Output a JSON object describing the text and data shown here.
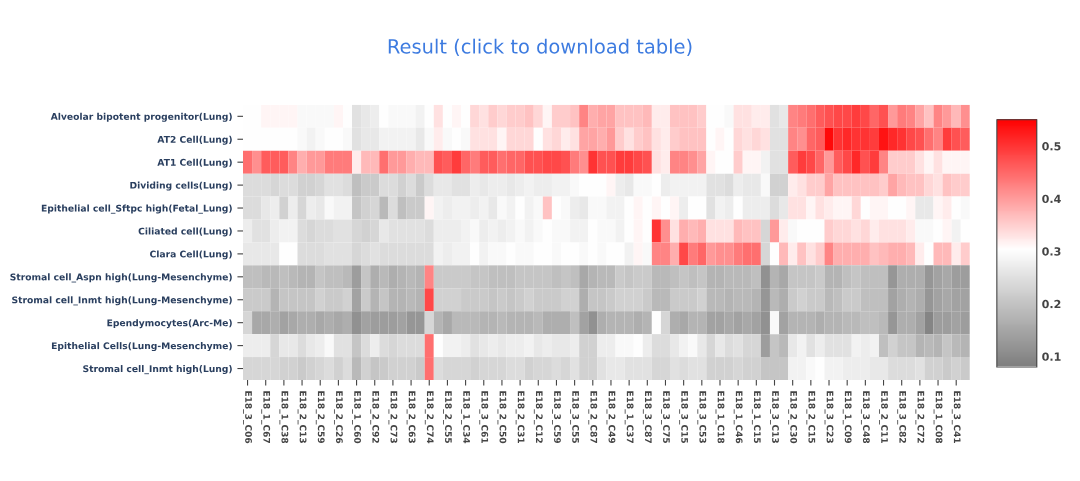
{
  "chart_data": {
    "type": "heatmap",
    "title": "Result (click to download table)",
    "categories": [
      "E18_3_C06",
      null,
      "E18_1_C67",
      null,
      "E18_1_C38",
      null,
      "E18_2_C13",
      null,
      "E18_2_C59",
      null,
      "E18_2_C26",
      null,
      "E18_1_C60",
      null,
      "E18_2_C92",
      null,
      "E18_2_C73",
      null,
      "E18_2_C63",
      null,
      "E18_2_C74",
      null,
      "E18_2_C55",
      null,
      "E18_1_C34",
      null,
      "E18_3_C61",
      null,
      "E18_2_C50",
      null,
      "E18_2_C31",
      null,
      "E18_2_C12",
      null,
      "E18_3_C59",
      null,
      "E18_3_C55",
      null,
      "E18_2_C87",
      null,
      "E18_2_C49",
      null,
      "E18_1_C37",
      null,
      "E18_3_C87",
      null,
      "E18_3_C75",
      null,
      "E18_3_C15",
      null,
      "E18_3_C53",
      null,
      "E18_1_C18",
      null,
      "E18_1_C46",
      null,
      "E18_1_C15",
      null,
      "E18_3_C13",
      null,
      "E18_2_C30",
      null,
      "E18_2_C15",
      null,
      "E18_3_C23",
      null,
      "E18_1_C09",
      null,
      "E18_3_C48",
      null,
      "E18_2_C11",
      null,
      "E18_3_C82",
      null,
      "E18_2_C72",
      null,
      "E18_1_C08",
      null,
      "E18_3_C41",
      null
    ],
    "y_categories": [
      "Alveolar bipotent progenitor(Lung)",
      "AT2 Cell(Lung)",
      "AT1 Cell(Lung)",
      "Dividing cells(Lung)",
      "Epithelial cell_Sftpc high(Fetal_Lung)",
      "Ciliated cell(Lung)",
      "Clara Cell(Lung)",
      "Stromal cell_Aspn high(Lung-Mesenchyme)",
      "Stromal cell_Inmt high(Lung-Mesenchyme)",
      "Ependymocytes(Arc-Me)",
      "Epithelial Cells(Lung-Mesenchyme)",
      "Stromal cell_Inmt high(Lung)"
    ],
    "cells": [
      [
        0.3,
        0.3,
        0.31,
        0.31,
        0.31,
        0.31,
        0.29,
        0.29,
        0.29,
        0.29,
        0.31,
        0.3,
        0.25,
        0.26,
        0.27,
        0.3,
        0.29,
        0.29,
        0.29,
        0.28,
        0.3,
        0.33,
        0.3,
        0.31,
        0.3,
        0.34,
        0.33,
        0.35,
        0.34,
        0.35,
        0.35,
        0.36,
        0.34,
        0.31,
        0.35,
        0.35,
        0.36,
        0.42,
        0.38,
        0.39,
        0.39,
        0.36,
        0.36,
        0.36,
        0.37,
        0.32,
        0.32,
        0.36,
        0.36,
        0.36,
        0.35,
        0.3,
        0.3,
        0.29,
        0.33,
        0.33,
        0.32,
        0.32,
        0.25,
        0.26,
        0.42,
        0.43,
        0.44,
        0.46,
        0.47,
        0.48,
        0.48,
        0.49,
        0.48,
        0.45,
        0.47,
        0.4,
        0.43,
        0.42,
        0.39,
        0.36,
        0.42,
        0.4,
        0.37,
        0.41
      ],
      [
        0.3,
        0.3,
        0.3,
        0.3,
        0.3,
        0.3,
        0.29,
        0.28,
        0.29,
        0.3,
        0.3,
        0.29,
        0.25,
        0.26,
        0.26,
        0.28,
        0.28,
        0.28,
        0.28,
        0.26,
        0.29,
        0.32,
        0.29,
        0.3,
        0.29,
        0.33,
        0.33,
        0.33,
        0.31,
        0.34,
        0.34,
        0.34,
        0.3,
        0.33,
        0.34,
        0.32,
        0.33,
        0.39,
        0.39,
        0.38,
        0.4,
        0.35,
        0.33,
        0.35,
        0.36,
        0.33,
        0.32,
        0.35,
        0.36,
        0.36,
        0.36,
        0.3,
        0.31,
        0.3,
        0.34,
        0.33,
        0.34,
        0.33,
        0.25,
        0.25,
        0.42,
        0.41,
        0.45,
        0.46,
        0.54,
        0.5,
        0.51,
        0.5,
        0.5,
        0.49,
        0.53,
        0.51,
        0.5,
        0.48,
        0.47,
        0.44,
        0.42,
        0.49,
        0.47,
        0.46
      ],
      [
        0.44,
        0.41,
        0.46,
        0.46,
        0.46,
        0.42,
        0.38,
        0.4,
        0.4,
        0.43,
        0.43,
        0.43,
        0.32,
        0.37,
        0.37,
        0.44,
        0.4,
        0.4,
        0.38,
        0.37,
        0.37,
        0.47,
        0.46,
        0.49,
        0.45,
        0.43,
        0.46,
        0.46,
        0.44,
        0.45,
        0.45,
        0.47,
        0.47,
        0.48,
        0.48,
        0.47,
        0.43,
        0.41,
        0.5,
        0.47,
        0.47,
        0.49,
        0.49,
        0.48,
        0.47,
        0.33,
        0.32,
        0.42,
        0.42,
        0.41,
        0.39,
        0.31,
        0.3,
        0.3,
        0.35,
        0.31,
        0.31,
        0.28,
        0.25,
        0.25,
        0.46,
        0.49,
        0.48,
        0.45,
        0.4,
        0.46,
        0.48,
        0.51,
        0.47,
        0.49,
        0.42,
        0.35,
        0.35,
        0.35,
        0.33,
        0.31,
        0.33,
        0.31,
        0.31,
        0.31
      ],
      [
        0.24,
        0.24,
        0.24,
        0.23,
        0.24,
        0.24,
        0.22,
        0.22,
        0.23,
        0.25,
        0.25,
        0.24,
        0.19,
        0.21,
        0.21,
        0.24,
        0.24,
        0.22,
        0.24,
        0.21,
        0.24,
        0.26,
        0.26,
        0.25,
        0.25,
        0.27,
        0.26,
        0.27,
        0.27,
        0.26,
        0.27,
        0.28,
        0.27,
        0.27,
        0.28,
        0.28,
        0.29,
        0.3,
        0.3,
        0.3,
        0.31,
        0.27,
        0.26,
        0.29,
        0.29,
        0.3,
        0.27,
        0.28,
        0.28,
        0.28,
        0.28,
        0.25,
        0.25,
        0.24,
        0.27,
        0.26,
        0.26,
        0.29,
        0.22,
        0.22,
        0.32,
        0.33,
        0.35,
        0.35,
        0.39,
        0.36,
        0.36,
        0.36,
        0.36,
        0.36,
        0.35,
        0.39,
        0.37,
        0.36,
        0.36,
        0.34,
        0.33,
        0.36,
        0.35,
        0.35
      ],
      [
        0.24,
        0.24,
        0.26,
        0.27,
        0.22,
        0.27,
        0.23,
        0.27,
        0.26,
        0.29,
        0.28,
        0.28,
        0.2,
        0.22,
        0.23,
        0.18,
        0.24,
        0.19,
        0.21,
        0.21,
        0.31,
        0.28,
        0.27,
        0.28,
        0.28,
        0.27,
        0.28,
        0.26,
        0.29,
        0.28,
        0.3,
        0.28,
        0.29,
        0.36,
        0.3,
        0.29,
        0.27,
        0.26,
        0.29,
        0.29,
        0.28,
        0.28,
        0.3,
        0.31,
        0.3,
        0.31,
        0.3,
        0.31,
        0.27,
        0.3,
        0.3,
        0.25,
        0.28,
        0.27,
        0.3,
        0.27,
        0.27,
        0.27,
        0.24,
        0.26,
        0.33,
        0.33,
        0.31,
        0.33,
        0.32,
        0.31,
        0.31,
        0.34,
        0.3,
        0.31,
        0.31,
        0.3,
        0.3,
        0.31,
        0.26,
        0.26,
        0.31,
        0.32,
        0.3,
        0.29
      ],
      [
        0.27,
        0.25,
        0.25,
        0.27,
        0.28,
        0.28,
        0.24,
        0.23,
        0.24,
        0.24,
        0.25,
        0.25,
        0.23,
        0.22,
        0.23,
        0.26,
        0.25,
        0.25,
        0.25,
        0.25,
        0.24,
        0.27,
        0.27,
        0.27,
        0.28,
        0.29,
        0.27,
        0.28,
        0.27,
        0.28,
        0.29,
        0.28,
        0.29,
        0.3,
        0.29,
        0.29,
        0.28,
        0.28,
        0.3,
        0.29,
        0.29,
        0.28,
        0.3,
        0.31,
        0.3,
        0.5,
        0.41,
        0.33,
        0.38,
        0.37,
        0.38,
        0.33,
        0.33,
        0.33,
        0.37,
        0.36,
        0.36,
        0.23,
        0.4,
        0.32,
        0.29,
        0.3,
        0.3,
        0.3,
        0.35,
        0.34,
        0.34,
        0.33,
        0.34,
        0.32,
        0.33,
        0.33,
        0.33,
        0.32,
        0.29,
        0.29,
        0.3,
        0.31,
        0.28,
        0.3
      ],
      [
        0.26,
        0.26,
        0.26,
        0.26,
        0.3,
        0.3,
        0.24,
        0.24,
        0.24,
        0.25,
        0.25,
        0.25,
        0.23,
        0.24,
        0.25,
        0.24,
        0.24,
        0.24,
        0.24,
        0.24,
        0.24,
        0.28,
        0.27,
        0.28,
        0.28,
        0.3,
        0.28,
        0.29,
        0.29,
        0.3,
        0.29,
        0.29,
        0.3,
        0.3,
        0.29,
        0.3,
        0.3,
        0.29,
        0.3,
        0.29,
        0.3,
        0.3,
        0.28,
        0.31,
        0.29,
        0.42,
        0.42,
        0.38,
        0.48,
        0.43,
        0.45,
        0.4,
        0.41,
        0.41,
        0.43,
        0.44,
        0.44,
        0.23,
        0.3,
        0.37,
        0.32,
        0.36,
        0.33,
        0.35,
        0.42,
        0.38,
        0.38,
        0.38,
        0.38,
        0.36,
        0.37,
        0.38,
        0.38,
        0.37,
        0.32,
        0.3,
        0.37,
        0.37,
        0.32,
        0.35
      ],
      [
        0.19,
        0.19,
        0.18,
        0.18,
        0.19,
        0.18,
        0.17,
        0.17,
        0.2,
        0.19,
        0.19,
        0.18,
        0.13,
        0.2,
        0.16,
        0.18,
        0.16,
        0.17,
        0.18,
        0.17,
        0.42,
        0.21,
        0.21,
        0.21,
        0.21,
        0.2,
        0.2,
        0.19,
        0.19,
        0.19,
        0.2,
        0.2,
        0.2,
        0.2,
        0.19,
        0.2,
        0.19,
        0.15,
        0.17,
        0.18,
        0.18,
        0.21,
        0.2,
        0.21,
        0.21,
        0.18,
        0.18,
        0.19,
        0.2,
        0.19,
        0.2,
        0.17,
        0.17,
        0.18,
        0.18,
        0.18,
        0.19,
        0.11,
        0.17,
        0.15,
        0.2,
        0.2,
        0.2,
        0.21,
        0.17,
        0.17,
        0.19,
        0.2,
        0.19,
        0.19,
        0.19,
        0.12,
        0.16,
        0.16,
        0.16,
        0.12,
        0.14,
        0.15,
        0.13,
        0.13
      ],
      [
        0.21,
        0.21,
        0.21,
        0.17,
        0.2,
        0.2,
        0.2,
        0.2,
        0.22,
        0.21,
        0.21,
        0.22,
        0.14,
        0.21,
        0.17,
        0.2,
        0.17,
        0.17,
        0.18,
        0.17,
        0.48,
        0.22,
        0.22,
        0.22,
        0.21,
        0.21,
        0.21,
        0.2,
        0.21,
        0.2,
        0.21,
        0.22,
        0.21,
        0.21,
        0.21,
        0.22,
        0.22,
        0.16,
        0.2,
        0.2,
        0.21,
        0.22,
        0.22,
        0.22,
        0.21,
        0.18,
        0.18,
        0.21,
        0.21,
        0.21,
        0.22,
        0.18,
        0.18,
        0.17,
        0.18,
        0.18,
        0.17,
        0.12,
        0.18,
        0.16,
        0.21,
        0.22,
        0.21,
        0.21,
        0.18,
        0.19,
        0.21,
        0.21,
        0.19,
        0.19,
        0.19,
        0.14,
        0.16,
        0.17,
        0.16,
        0.12,
        0.14,
        0.15,
        0.14,
        0.14
      ],
      [
        0.23,
        0.15,
        0.15,
        0.16,
        0.14,
        0.15,
        0.16,
        0.16,
        0.15,
        0.16,
        0.15,
        0.16,
        0.11,
        0.14,
        0.13,
        0.13,
        0.13,
        0.14,
        0.12,
        0.12,
        0.23,
        0.17,
        0.15,
        0.18,
        0.18,
        0.18,
        0.17,
        0.17,
        0.18,
        0.17,
        0.17,
        0.17,
        0.18,
        0.16,
        0.16,
        0.16,
        0.19,
        0.14,
        0.11,
        0.16,
        0.17,
        0.17,
        0.17,
        0.16,
        0.17,
        0.3,
        0.23,
        0.16,
        0.15,
        0.17,
        0.17,
        0.14,
        0.14,
        0.15,
        0.14,
        0.15,
        0.14,
        0.11,
        0.29,
        0.14,
        0.17,
        0.17,
        0.17,
        0.16,
        0.17,
        0.17,
        0.18,
        0.18,
        0.19,
        0.19,
        0.18,
        0.12,
        0.16,
        0.16,
        0.14,
        0.09,
        0.13,
        0.13,
        0.14,
        0.13
      ],
      [
        0.27,
        0.27,
        0.27,
        0.23,
        0.26,
        0.26,
        0.24,
        0.26,
        0.27,
        0.29,
        0.25,
        0.25,
        0.2,
        0.24,
        0.27,
        0.24,
        0.23,
        0.24,
        0.24,
        0.24,
        0.44,
        0.3,
        0.28,
        0.28,
        0.27,
        0.25,
        0.26,
        0.27,
        0.26,
        0.27,
        0.27,
        0.28,
        0.26,
        0.27,
        0.26,
        0.26,
        0.27,
        0.22,
        0.22,
        0.27,
        0.27,
        0.29,
        0.29,
        0.3,
        0.27,
        0.24,
        0.24,
        0.26,
        0.28,
        0.29,
        0.26,
        0.23,
        0.26,
        0.24,
        0.25,
        0.23,
        0.23,
        0.13,
        0.2,
        0.18,
        0.26,
        0.28,
        0.25,
        0.27,
        0.25,
        0.25,
        0.25,
        0.28,
        0.27,
        0.28,
        0.19,
        0.22,
        0.2,
        0.2,
        0.17,
        0.18,
        0.17,
        0.2,
        0.18,
        0.17
      ],
      [
        0.23,
        0.23,
        0.23,
        0.23,
        0.22,
        0.22,
        0.21,
        0.22,
        0.23,
        0.24,
        0.22,
        0.24,
        0.18,
        0.22,
        0.2,
        0.21,
        0.22,
        0.22,
        0.22,
        0.21,
        0.44,
        0.24,
        0.23,
        0.23,
        0.23,
        0.22,
        0.23,
        0.23,
        0.23,
        0.24,
        0.24,
        0.22,
        0.23,
        0.23,
        0.24,
        0.23,
        0.25,
        0.22,
        0.22,
        0.25,
        0.26,
        0.26,
        0.25,
        0.25,
        0.25,
        0.23,
        0.23,
        0.25,
        0.24,
        0.25,
        0.25,
        0.22,
        0.22,
        0.22,
        0.23,
        0.22,
        0.22,
        0.2,
        0.2,
        0.2,
        0.28,
        0.28,
        0.29,
        0.3,
        0.28,
        0.28,
        0.27,
        0.27,
        0.27,
        0.26,
        0.26,
        0.24,
        0.24,
        0.24,
        0.25,
        0.22,
        0.22,
        0.21,
        0.22,
        0.21
      ]
    ],
    "clim": [
      0.08,
      0.55
    ],
    "cticks": [
      0.1,
      0.2,
      0.3,
      0.4,
      0.5
    ]
  }
}
